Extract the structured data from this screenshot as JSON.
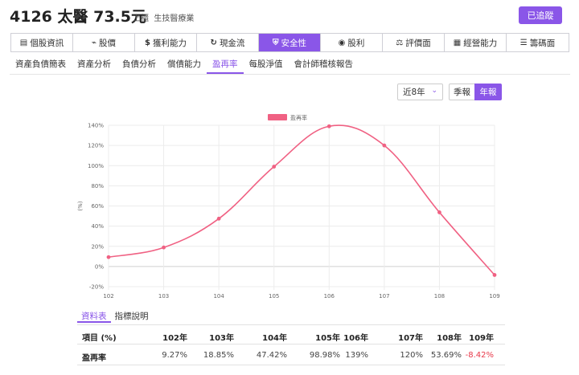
{
  "header": {
    "title": "4126 太醫 73.5元",
    "market": "上櫃",
    "industry": "生技醫療業",
    "follow_label": "已追蹤"
  },
  "main_tabs": [
    {
      "label": "個股資訊",
      "icon": "document-icon"
    },
    {
      "label": "股價",
      "icon": "chart-line-icon"
    },
    {
      "label": "獲利能力",
      "icon": "dollar-icon"
    },
    {
      "label": "現金流",
      "icon": "refresh-icon"
    },
    {
      "label": "安全性",
      "icon": "shield-icon",
      "active": true
    },
    {
      "label": "股利",
      "icon": "coin-icon"
    },
    {
      "label": "評價面",
      "icon": "scale-icon"
    },
    {
      "label": "經營能力",
      "icon": "building-icon"
    },
    {
      "label": "籌碼面",
      "icon": "database-icon"
    }
  ],
  "sub_tabs": [
    {
      "label": "資產負債簡表"
    },
    {
      "label": "資產分析"
    },
    {
      "label": "負債分析"
    },
    {
      "label": "償債能力"
    },
    {
      "label": "盈再率",
      "active": true
    },
    {
      "label": "每股淨值"
    },
    {
      "label": "會計師稽核報告"
    }
  ],
  "controls": {
    "range": "近8年",
    "season_label": "季報",
    "year_label": "年報"
  },
  "chart_data": {
    "type": "line",
    "categories": [
      "102",
      "103",
      "104",
      "105",
      "106",
      "107",
      "108",
      "109"
    ],
    "series": [
      {
        "name": "盈再率",
        "values": [
          9.27,
          18.85,
          47.42,
          98.98,
          139,
          120,
          53.69,
          -8.42
        ],
        "color": "#f06183"
      }
    ],
    "ylabel": "(%)",
    "ylim": [
      -20,
      140
    ],
    "y_ticks": [
      "140%",
      "120%",
      "100%",
      "80%",
      "60%",
      "40%",
      "20%",
      "0%",
      "-20%"
    ],
    "grid": true,
    "legend": "top-center"
  },
  "table": {
    "tabs": [
      {
        "label": "資料表",
        "active": true
      },
      {
        "label": "指標說明"
      }
    ],
    "header": {
      "label": "項目 (%)",
      "years": [
        "102年",
        "103年",
        "104年",
        "105年",
        "106年",
        "107年",
        "108年",
        "109年"
      ]
    },
    "row": {
      "label": "盈再率",
      "values": [
        "9.27%",
        "18.85%",
        "47.42%",
        "98.98%",
        "139%",
        "120%",
        "53.69%",
        "-8.42%"
      ]
    }
  },
  "colors": {
    "accent": "#8a56e8",
    "line": "#f06183",
    "negative": "#e8394a"
  }
}
